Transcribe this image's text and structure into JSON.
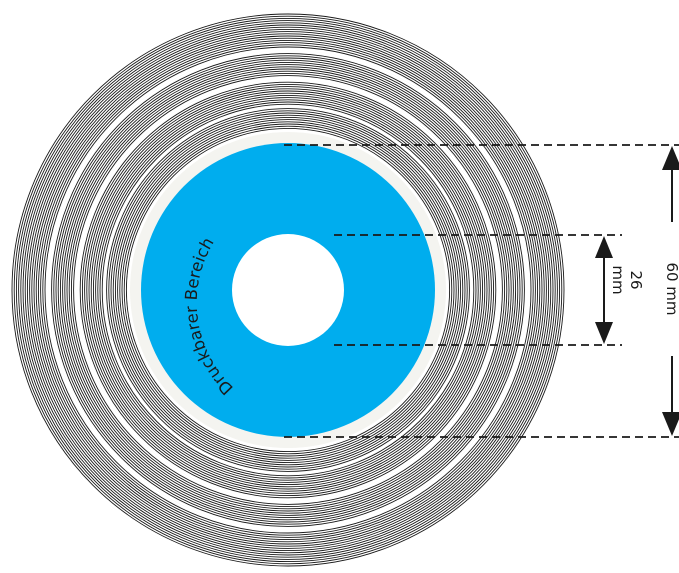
{
  "colors": {
    "background": "#ffffff",
    "groove": "#1a1a1a",
    "label_area": "#00adee",
    "margin_ring": "#f4f4f0",
    "dimension": "#1a1a1a"
  },
  "label": {
    "text": "Druckbarer Bereich"
  },
  "dimensions": {
    "outer": {
      "value": "60 mm"
    },
    "inner": {
      "value": "26",
      "unit": "mm"
    }
  }
}
